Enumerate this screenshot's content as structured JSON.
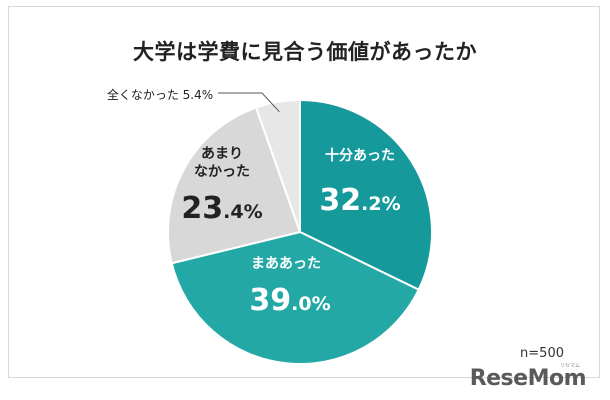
{
  "page": {
    "title": "大学は学費に見合う価値があったか",
    "sample_size": "n=500",
    "brand": "ReseMom",
    "brand_kana": "リセマム"
  },
  "chart_data": {
    "type": "pie",
    "title": "大学は学費に見合う価値があったか",
    "start_angle_deg": 0,
    "direction": "clockwise",
    "slices": [
      {
        "label_lines": [
          "十分あった"
        ],
        "pct_int": "32",
        "pct_dec": ".2%",
        "value": 32.2,
        "color": "#16999b",
        "label_color": "#ffffff"
      },
      {
        "label_lines": [
          "まああった"
        ],
        "pct_int": "39",
        "pct_dec": ".0%",
        "value": 39.0,
        "color": "#23a8a6",
        "label_color": "#ffffff"
      },
      {
        "label_lines": [
          "あまり",
          "なかった"
        ],
        "pct_int": "23",
        "pct_dec": ".4%",
        "value": 23.4,
        "color": "#d8d8d8",
        "label_color": "#222222"
      },
      {
        "label_lines": [
          "全くなかった 5.4%"
        ],
        "pct_int": "",
        "pct_dec": "",
        "value": 5.4,
        "color": "#e7e7e7",
        "label_color": "#222222",
        "callout": true
      }
    ]
  }
}
